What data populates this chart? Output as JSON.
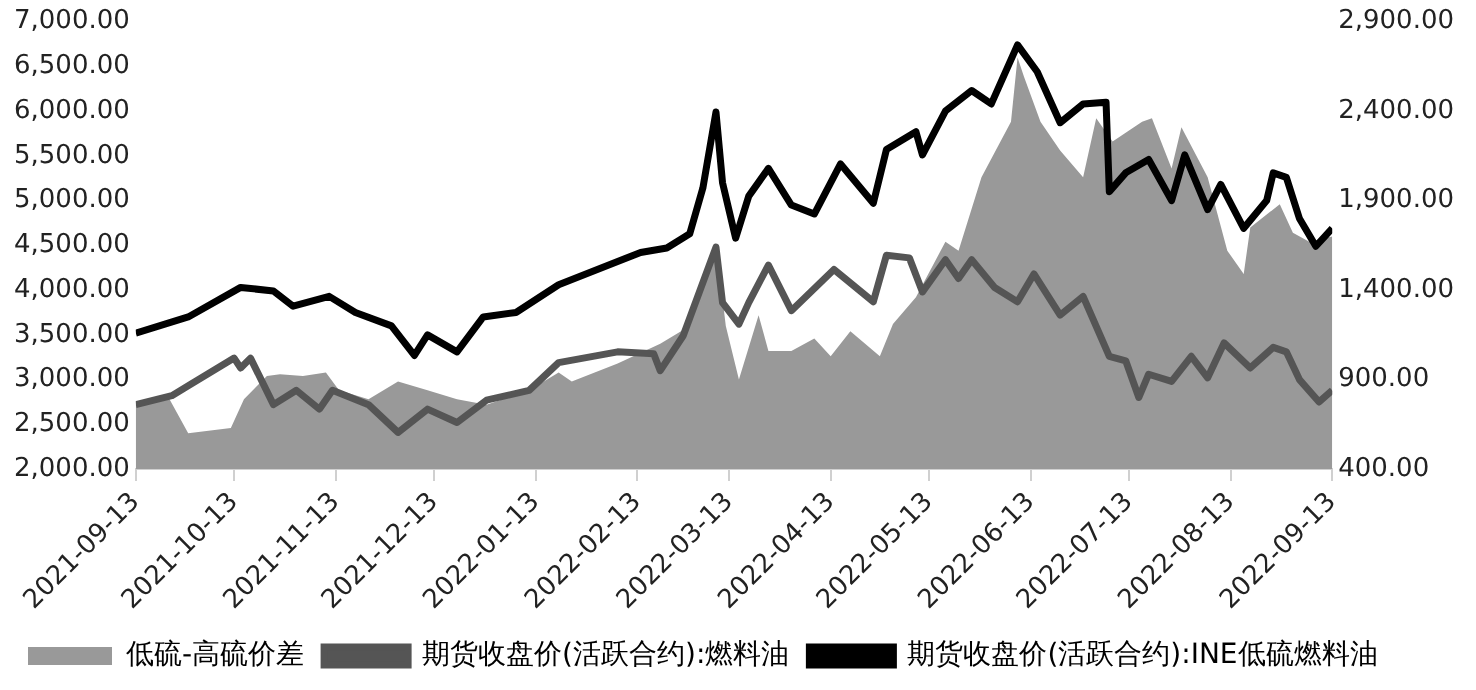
{
  "chart_data": {
    "type": "line",
    "grid": false,
    "legend": "bottom",
    "marker": "none",
    "xlim": [
      "2021-09-13",
      "2022-09-13"
    ],
    "xticks": [
      "2021-09-13",
      "2021-10-13",
      "2021-11-13",
      "2021-12-13",
      "2022-01-13",
      "2022-02-13",
      "2022-03-13",
      "2022-04-13",
      "2022-05-13",
      "2022-06-13",
      "2022-07-13",
      "2022-08-13",
      "2022-09-13"
    ],
    "ylim": [
      2000,
      7000
    ],
    "yticks": [
      {
        "value": 2000,
        "label": "2,000.00"
      },
      {
        "value": 2500,
        "label": "2,500.00"
      },
      {
        "value": 3000,
        "label": "3,000.00"
      },
      {
        "value": 3500,
        "label": "3,500.00"
      },
      {
        "value": 4000,
        "label": "4,000.00"
      },
      {
        "value": 4500,
        "label": "4,500.00"
      },
      {
        "value": 5000,
        "label": "5,000.00"
      },
      {
        "value": 5500,
        "label": "5,500.00"
      },
      {
        "value": 6000,
        "label": "6,000.00"
      },
      {
        "value": 6500,
        "label": "6,500.00"
      },
      {
        "value": 7000,
        "label": "7,000.00"
      }
    ],
    "y2lim": [
      400,
      2900
    ],
    "y2ticks": [
      {
        "value": 400,
        "label": "400.00"
      },
      {
        "value": 900,
        "label": "900.00"
      },
      {
        "value": 1400,
        "label": "1,400.00"
      },
      {
        "value": 1900,
        "label": "1,900.00"
      },
      {
        "value": 2400,
        "label": "2,400.00"
      },
      {
        "value": 2900,
        "label": "2,900.00"
      }
    ],
    "series": [
      {
        "name": "低硫-高硫价差",
        "type": "area",
        "axis": "y2",
        "color": "#999999",
        "x": [
          "2021-09-13",
          "2021-09-23",
          "2021-09-29",
          "2021-10-12",
          "2021-10-16",
          "2021-10-23",
          "2021-10-27",
          "2021-11-03",
          "2021-11-10",
          "2021-11-14",
          "2021-11-23",
          "2021-12-02",
          "2021-12-11",
          "2021-12-20",
          "2021-12-29",
          "2022-01-11",
          "2022-01-20",
          "2022-01-24",
          "2022-02-07",
          "2022-02-20",
          "2022-03-01",
          "2022-03-09",
          "2022-03-12",
          "2022-03-16",
          "2022-03-22",
          "2022-03-25",
          "2022-04-01",
          "2022-04-08",
          "2022-04-13",
          "2022-04-19",
          "2022-04-28",
          "2022-05-02",
          "2022-05-09",
          "2022-05-18",
          "2022-05-22",
          "2022-05-29",
          "2022-06-07",
          "2022-06-09",
          "2022-06-11",
          "2022-06-16",
          "2022-06-22",
          "2022-06-29",
          "2022-07-03",
          "2022-07-08",
          "2022-07-17",
          "2022-07-20",
          "2022-07-26",
          "2022-07-29",
          "2022-08-06",
          "2022-08-12",
          "2022-08-17",
          "2022-08-19",
          "2022-08-28",
          "2022-09-01",
          "2022-09-06",
          "2022-09-13"
        ],
        "values": [
          760,
          800,
          600,
          630,
          790,
          920,
          930,
          920,
          940,
          840,
          790,
          890,
          840,
          790,
          760,
          840,
          940,
          890,
          990,
          1100,
          1200,
          1660,
          1200,
          900,
          1260,
          1060,
          1060,
          1130,
          1030,
          1170,
          1030,
          1210,
          1360,
          1670,
          1620,
          2030,
          2340,
          2700,
          2590,
          2340,
          2180,
          2030,
          2360,
          2230,
          2340,
          2360,
          2080,
          2310,
          2030,
          1620,
          1490,
          1750,
          1880,
          1720,
          1670,
          1700
        ]
      },
      {
        "name": "期货收盘价(活跃合约):燃料油",
        "type": "line",
        "color": "#555555",
        "x": [
          "2021-09-13",
          "2021-09-24",
          "2021-09-29",
          "2021-10-13",
          "2021-10-15",
          "2021-10-18",
          "2021-10-25",
          "2021-11-01",
          "2021-11-08",
          "2021-11-12",
          "2021-11-23",
          "2021-12-02",
          "2021-12-11",
          "2021-12-20",
          "2021-12-29",
          "2022-01-11",
          "2022-01-20",
          "2022-02-07",
          "2022-02-18",
          "2022-02-20",
          "2022-02-27",
          "2022-03-09",
          "2022-03-11",
          "2022-03-16",
          "2022-03-19",
          "2022-03-25",
          "2022-04-01",
          "2022-04-14",
          "2022-04-26",
          "2022-04-30",
          "2022-05-07",
          "2022-05-11",
          "2022-05-18",
          "2022-05-22",
          "2022-05-26",
          "2022-06-02",
          "2022-06-09",
          "2022-06-14",
          "2022-06-22",
          "2022-06-29",
          "2022-07-07",
          "2022-07-12",
          "2022-07-16",
          "2022-07-19",
          "2022-07-26",
          "2022-08-01",
          "2022-08-06",
          "2022-08-11",
          "2022-08-19",
          "2022-08-26",
          "2022-08-30",
          "2022-09-03",
          "2022-09-09",
          "2022-09-13"
        ],
        "values": [
          2720,
          2820,
          2930,
          3240,
          3130,
          3240,
          2720,
          2880,
          2670,
          2880,
          2720,
          2410,
          2670,
          2520,
          2770,
          2880,
          3190,
          3310,
          3290,
          3100,
          3490,
          4480,
          3860,
          3620,
          3860,
          4280,
          3770,
          4230,
          3870,
          4390,
          4360,
          3980,
          4340,
          4130,
          4340,
          4030,
          3870,
          4180,
          3720,
          3930,
          3260,
          3210,
          2800,
          3060,
          2980,
          3260,
          3020,
          3410,
          3130,
          3360,
          3310,
          3000,
          2750,
          2880
        ]
      },
      {
        "name": "期货收盘价(活跃合约):INE低硫燃料油",
        "type": "line",
        "color": "#000000",
        "x": [
          "2021-09-13",
          "2021-09-29",
          "2021-10-15",
          "2021-10-25",
          "2021-10-31",
          "2021-11-11",
          "2021-11-19",
          "2021-11-30",
          "2021-12-07",
          "2021-12-11",
          "2021-12-20",
          "2021-12-28",
          "2022-01-07",
          "2022-01-20",
          "2022-02-07",
          "2022-02-14",
          "2022-02-22",
          "2022-03-01",
          "2022-03-05",
          "2022-03-09",
          "2022-03-11",
          "2022-03-15",
          "2022-03-19",
          "2022-03-25",
          "2022-04-01",
          "2022-04-08",
          "2022-04-16",
          "2022-04-26",
          "2022-04-30",
          "2022-05-09",
          "2022-05-11",
          "2022-05-18",
          "2022-05-26",
          "2022-06-01",
          "2022-06-09",
          "2022-06-15",
          "2022-06-22",
          "2022-06-29",
          "2022-07-06",
          "2022-07-07",
          "2022-07-12",
          "2022-07-19",
          "2022-07-26",
          "2022-07-30",
          "2022-08-06",
          "2022-08-10",
          "2022-08-17",
          "2022-08-24",
          "2022-08-26",
          "2022-08-30",
          "2022-09-03",
          "2022-09-08",
          "2022-09-13"
        ],
        "values": [
          3520,
          3700,
          4030,
          3990,
          3820,
          3930,
          3750,
          3600,
          3270,
          3500,
          3310,
          3700,
          3750,
          4060,
          4320,
          4420,
          4470,
          4630,
          5140,
          5990,
          5200,
          4580,
          5050,
          5360,
          4950,
          4850,
          5410,
          4970,
          5570,
          5770,
          5510,
          6000,
          6230,
          6080,
          6740,
          6440,
          5870,
          6080,
          6100,
          5100,
          5310,
          5460,
          5000,
          5510,
          4900,
          5180,
          4690,
          5000,
          5310,
          5260,
          4800,
          4490,
          4690
        ]
      }
    ]
  }
}
